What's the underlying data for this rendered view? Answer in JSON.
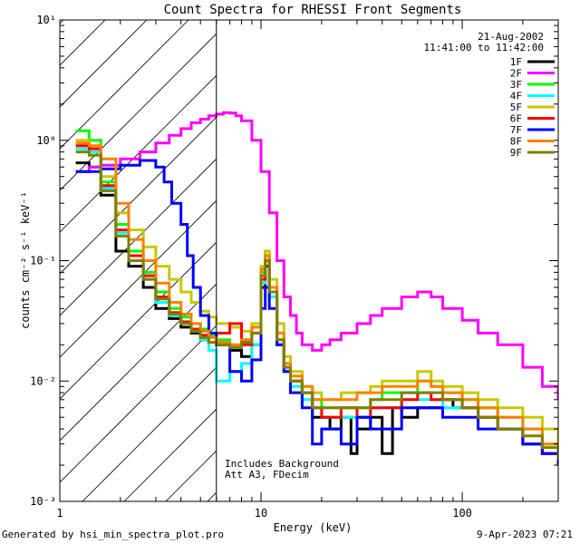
{
  "chart_data": {
    "type": "line",
    "title": "Count Spectra for RHESSI Front Segments",
    "xlabel": "Energy (keV)",
    "ylabel": "counts cm⁻² s⁻¹ keV⁻¹",
    "xscale": "log",
    "yscale": "log",
    "xlim": [
      1,
      300
    ],
    "ylim": [
      0.001,
      10
    ],
    "x_ticks": [
      "1",
      "10",
      "100"
    ],
    "y_ticks": [
      "10⁻³",
      "10⁻²",
      "10⁻¹",
      "10⁰",
      "10¹"
    ],
    "date": "21-Aug-2002",
    "time_range": "11:41:00 to 11:42:00",
    "attenuator_line_keV": 6,
    "hatched_region_keV": [
      1,
      6
    ],
    "annotation": [
      "Includes Background",
      "Att A3, FDecim"
    ],
    "series": [
      {
        "name": "1F",
        "color": "#000000",
        "x": [
          1.2,
          1.4,
          1.6,
          1.9,
          2.2,
          2.6,
          3.0,
          3.5,
          4.0,
          4.5,
          5.0,
          5.5,
          6.0,
          7.0,
          8.0,
          9.0,
          10.0,
          10.5,
          11.0,
          12.0,
          13.0,
          14.0,
          16.0,
          18.0,
          20.0,
          22.0,
          25.0,
          28.0,
          30.0,
          35.0,
          40.0,
          45.0,
          50.0,
          60.0,
          70.0,
          80.0,
          90.0,
          100.0,
          120.0,
          150.0,
          200.0,
          250.0,
          300.0
        ],
        "y": [
          0.65,
          0.6,
          0.35,
          0.12,
          0.09,
          0.06,
          0.04,
          0.033,
          0.028,
          0.025,
          0.022,
          0.021,
          0.02,
          0.018,
          0.016,
          0.02,
          0.06,
          0.09,
          0.05,
          0.02,
          0.012,
          0.01,
          0.008,
          0.005,
          0.005,
          0.004,
          0.005,
          0.0025,
          0.004,
          0.005,
          0.0025,
          0.006,
          0.005,
          0.006,
          0.006,
          0.007,
          0.006,
          0.006,
          0.005,
          0.004,
          0.003,
          0.0025,
          0.002
        ]
      },
      {
        "name": "2F",
        "color": "#ff00ff",
        "x": [
          1.2,
          1.4,
          1.6,
          2.0,
          2.5,
          3.0,
          3.5,
          4.0,
          4.5,
          5.0,
          5.5,
          6.0,
          6.5,
          7.0,
          7.5,
          8.0,
          9.0,
          10.0,
          11.0,
          12.0,
          13.0,
          14.0,
          15.0,
          16.0,
          18.0,
          20.0,
          22.0,
          25.0,
          30.0,
          35.0,
          40.0,
          50.0,
          60.0,
          70.0,
          80.0,
          100.0,
          120.0,
          150.0,
          200.0,
          250.0,
          300.0
        ],
        "y": [
          0.55,
          0.6,
          0.62,
          0.7,
          0.8,
          0.95,
          1.1,
          1.25,
          1.4,
          1.5,
          1.6,
          1.65,
          1.7,
          1.68,
          1.6,
          1.45,
          1.0,
          0.55,
          0.25,
          0.1,
          0.05,
          0.035,
          0.025,
          0.02,
          0.018,
          0.02,
          0.022,
          0.025,
          0.03,
          0.035,
          0.04,
          0.05,
          0.055,
          0.05,
          0.04,
          0.032,
          0.025,
          0.02,
          0.013,
          0.009,
          0.007
        ]
      },
      {
        "name": "3F",
        "color": "#00ff00",
        "x": [
          1.2,
          1.4,
          1.6,
          1.9,
          2.2,
          2.6,
          3.0,
          3.5,
          4.0,
          4.5,
          5.0,
          5.5,
          6.0,
          7.0,
          8.0,
          9.0,
          10.0,
          10.5,
          11.0,
          12.0,
          13.0,
          14.0,
          16.0,
          18.0,
          20.0,
          25.0,
          30.0,
          35.0,
          40.0,
          50.0,
          60.0,
          70.0,
          80.0,
          100.0,
          120.0,
          150.0,
          200.0,
          250.0,
          300.0
        ],
        "y": [
          1.2,
          1.0,
          0.45,
          0.2,
          0.12,
          0.08,
          0.055,
          0.04,
          0.034,
          0.03,
          0.027,
          0.024,
          0.022,
          0.02,
          0.022,
          0.028,
          0.08,
          0.12,
          0.06,
          0.025,
          0.014,
          0.01,
          0.008,
          0.007,
          0.006,
          0.006,
          0.006,
          0.007,
          0.008,
          0.008,
          0.01,
          0.009,
          0.008,
          0.007,
          0.006,
          0.005,
          0.004,
          0.003,
          0.0025
        ]
      },
      {
        "name": "4F",
        "color": "#00ffff",
        "x": [
          1.2,
          1.4,
          1.6,
          1.9,
          2.2,
          2.6,
          3.0,
          3.5,
          4.0,
          4.5,
          5.0,
          5.5,
          6.0,
          7.0,
          8.0,
          9.0,
          10.0,
          10.5,
          11.0,
          12.0,
          13.0,
          14.0,
          16.0,
          18.0,
          20.0,
          25.0,
          30.0,
          35.0,
          40.0,
          50.0,
          60.0,
          70.0,
          80.0,
          100.0,
          120.0,
          150.0,
          200.0,
          250.0,
          300.0
        ],
        "y": [
          0.85,
          0.8,
          0.4,
          0.17,
          0.11,
          0.07,
          0.045,
          0.035,
          0.03,
          0.026,
          0.022,
          0.018,
          0.01,
          0.012,
          0.014,
          0.02,
          0.065,
          0.1,
          0.05,
          0.02,
          0.012,
          0.009,
          0.007,
          0.006,
          0.005,
          0.005,
          0.005,
          0.006,
          0.006,
          0.007,
          0.007,
          0.007,
          0.006,
          0.006,
          0.005,
          0.004,
          0.003,
          0.0025,
          0.002
        ]
      },
      {
        "name": "5F",
        "color": "#c8c800",
        "x": [
          1.2,
          1.4,
          1.6,
          1.9,
          2.2,
          2.6,
          3.0,
          3.5,
          4.0,
          4.5,
          5.0,
          5.5,
          6.0,
          7.0,
          8.0,
          9.0,
          10.0,
          10.5,
          11.0,
          12.0,
          13.0,
          14.0,
          16.0,
          18.0,
          20.0,
          25.0,
          30.0,
          35.0,
          40.0,
          50.0,
          60.0,
          70.0,
          80.0,
          100.0,
          120.0,
          150.0,
          200.0,
          250.0,
          300.0
        ],
        "y": [
          1.0,
          0.9,
          0.5,
          0.25,
          0.18,
          0.13,
          0.09,
          0.07,
          0.055,
          0.045,
          0.038,
          0.034,
          0.03,
          0.028,
          0.026,
          0.03,
          0.09,
          0.12,
          0.07,
          0.03,
          0.016,
          0.012,
          0.009,
          0.008,
          0.007,
          0.008,
          0.008,
          0.009,
          0.01,
          0.01,
          0.012,
          0.01,
          0.009,
          0.008,
          0.007,
          0.006,
          0.005,
          0.004,
          0.003
        ]
      },
      {
        "name": "6F",
        "color": "#ff0000",
        "x": [
          1.2,
          1.4,
          1.6,
          1.9,
          2.2,
          2.6,
          3.0,
          3.5,
          4.0,
          4.5,
          5.0,
          5.5,
          6.0,
          7.0,
          8.0,
          9.0,
          10.0,
          10.5,
          11.0,
          12.0,
          13.0,
          14.0,
          16.0,
          18.0,
          20.0,
          25.0,
          30.0,
          35.0,
          40.0,
          50.0,
          60.0,
          70.0,
          80.0,
          100.0,
          120.0,
          150.0,
          200.0,
          250.0,
          300.0
        ],
        "y": [
          0.9,
          0.85,
          0.42,
          0.18,
          0.11,
          0.075,
          0.05,
          0.037,
          0.031,
          0.027,
          0.024,
          0.021,
          0.025,
          0.03,
          0.02,
          0.025,
          0.07,
          0.1,
          0.06,
          0.022,
          0.013,
          0.01,
          0.008,
          0.006,
          0.005,
          0.006,
          0.005,
          0.006,
          0.006,
          0.007,
          0.008,
          0.007,
          0.007,
          0.006,
          0.005,
          0.004,
          0.003,
          0.0025,
          0.002
        ]
      },
      {
        "name": "7F",
        "color": "#0000ff",
        "x": [
          1.2,
          1.4,
          1.6,
          2.0,
          2.5,
          3.0,
          3.3,
          3.6,
          4.0,
          4.3,
          4.6,
          5.0,
          5.5,
          6.0,
          7.0,
          8.0,
          9.0,
          10.0,
          10.5,
          11.0,
          12.0,
          13.0,
          14.0,
          16.0,
          18.0,
          20.0,
          25.0,
          30.0,
          35.0,
          40.0,
          50.0,
          60.0,
          70.0,
          80.0,
          100.0,
          120.0,
          150.0,
          200.0,
          250.0,
          300.0
        ],
        "y": [
          0.55,
          0.55,
          0.58,
          0.62,
          0.68,
          0.6,
          0.45,
          0.3,
          0.2,
          0.11,
          0.06,
          0.035,
          0.025,
          0.02,
          0.012,
          0.01,
          0.015,
          0.04,
          0.06,
          0.04,
          0.02,
          0.012,
          0.008,
          0.006,
          0.003,
          0.004,
          0.003,
          0.005,
          0.004,
          0.004,
          0.006,
          0.006,
          0.006,
          0.005,
          0.005,
          0.004,
          0.004,
          0.003,
          0.0025,
          0.002
        ]
      },
      {
        "name": "8F",
        "color": "#ff8000",
        "x": [
          1.2,
          1.4,
          1.6,
          1.9,
          2.2,
          2.6,
          3.0,
          3.5,
          4.0,
          4.5,
          5.0,
          5.5,
          6.0,
          7.0,
          8.0,
          9.0,
          10.0,
          10.5,
          11.0,
          12.0,
          13.0,
          14.0,
          16.0,
          18.0,
          20.0,
          25.0,
          30.0,
          35.0,
          40.0,
          50.0,
          60.0,
          70.0,
          80.0,
          100.0,
          120.0,
          150.0,
          200.0,
          250.0,
          300.0
        ],
        "y": [
          0.95,
          0.9,
          0.7,
          0.3,
          0.15,
          0.1,
          0.065,
          0.045,
          0.036,
          0.03,
          0.026,
          0.023,
          0.021,
          0.02,
          0.022,
          0.028,
          0.085,
          0.11,
          0.06,
          0.025,
          0.014,
          0.011,
          0.009,
          0.007,
          0.007,
          0.007,
          0.008,
          0.008,
          0.009,
          0.009,
          0.01,
          0.009,
          0.008,
          0.007,
          0.006,
          0.005,
          0.004,
          0.003,
          0.0025
        ]
      },
      {
        "name": "9F",
        "color": "#808000",
        "x": [
          1.2,
          1.4,
          1.6,
          1.9,
          2.2,
          2.6,
          3.0,
          3.5,
          4.0,
          4.5,
          5.0,
          5.5,
          6.0,
          7.0,
          8.0,
          9.0,
          10.0,
          10.5,
          11.0,
          12.0,
          13.0,
          14.0,
          16.0,
          18.0,
          20.0,
          25.0,
          30.0,
          35.0,
          40.0,
          50.0,
          60.0,
          70.0,
          80.0,
          100.0,
          120.0,
          150.0,
          200.0,
          250.0,
          300.0
        ],
        "y": [
          0.8,
          0.75,
          0.38,
          0.16,
          0.1,
          0.07,
          0.048,
          0.036,
          0.03,
          0.026,
          0.023,
          0.021,
          0.02,
          0.019,
          0.021,
          0.025,
          0.075,
          0.1,
          0.055,
          0.022,
          0.013,
          0.01,
          0.008,
          0.006,
          0.006,
          0.006,
          0.006,
          0.007,
          0.007,
          0.008,
          0.008,
          0.008,
          0.007,
          0.006,
          0.005,
          0.004,
          0.0035,
          0.0028,
          0.0022
        ]
      }
    ]
  },
  "footer": {
    "generated_by": "Generated by hsi_min_spectra_plot.pro",
    "timestamp": "9-Apr-2023 07:21"
  }
}
